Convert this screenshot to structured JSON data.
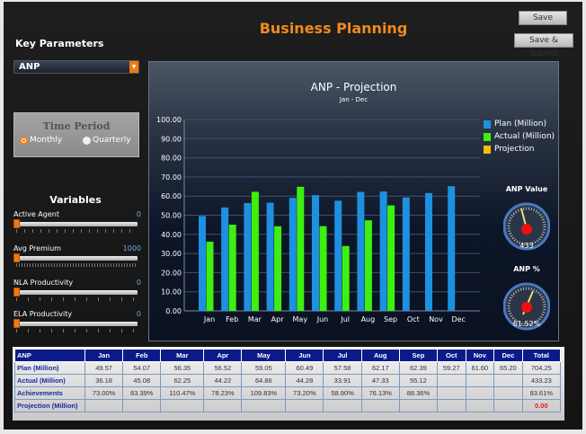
{
  "header": {
    "title": "Business Planning",
    "save_label": "Save",
    "save_submit_label": "Save & Submit"
  },
  "sidebar": {
    "key_parameters_label": "Key Parameters",
    "parameter_select": "ANP",
    "time_period": {
      "title": "Time Period",
      "options": [
        "Monthly",
        "Quarterly"
      ],
      "selected": "Monthly"
    },
    "variables_title": "Variables",
    "variables": [
      {
        "label": "Active Agent",
        "value": "0"
      },
      {
        "label": "Avg Premium",
        "value": "1000"
      },
      {
        "label": "NLA Productivity",
        "value": "0"
      },
      {
        "label": "ELA Productivity",
        "value": "0"
      }
    ]
  },
  "colors": {
    "plan": "#1e90e0",
    "actual": "#3ef010",
    "projection": "#f0c000",
    "accent": "#f07a10"
  },
  "chart_data": {
    "type": "bar",
    "title": "ANP - Projection",
    "subtitle": "Jan - Dec",
    "categories": [
      "Jan",
      "Feb",
      "Mar",
      "Apr",
      "May",
      "Jun",
      "Jul",
      "Aug",
      "Sep",
      "Oct",
      "Nov",
      "Dec"
    ],
    "series": [
      {
        "name": "Plan (Million)",
        "values": [
          49.57,
          54.07,
          56.35,
          56.52,
          59.05,
          60.49,
          57.58,
          62.17,
          62.39,
          59.27,
          61.6,
          65.2
        ]
      },
      {
        "name": "Actual (Million)",
        "values": [
          36.18,
          45.08,
          62.25,
          44.22,
          64.86,
          44.28,
          33.91,
          47.33,
          55.12,
          null,
          null,
          null
        ]
      },
      {
        "name": "Projection",
        "values": [
          null,
          null,
          null,
          null,
          null,
          null,
          null,
          null,
          null,
          null,
          null,
          null
        ]
      }
    ],
    "yticks": [
      "0.00",
      "10.00",
      "20.00",
      "30.00",
      "40.00",
      "50.00",
      "60.00",
      "70.00",
      "80.00",
      "90.00",
      "100.00"
    ],
    "ylim": [
      0,
      100
    ],
    "legend": "right"
  },
  "gauges": [
    {
      "label": "ANP Value",
      "value": "433"
    },
    {
      "label": "ANP %",
      "value": "61.52%"
    }
  ],
  "table": {
    "headers": [
      "ANP",
      "Jan",
      "Feb",
      "Mar",
      "Apr",
      "May",
      "Jun",
      "Jul",
      "Aug",
      "Sep",
      "Oct",
      "Nov",
      "Dec",
      "Total"
    ],
    "rows": [
      {
        "label": "Plan (Million)",
        "cells": [
          "49.57",
          "54.07",
          "56.35",
          "56.52",
          "59.05",
          "60.49",
          "57.58",
          "62.17",
          "62.39",
          "59.27",
          "61.60",
          "65.20",
          "704.25"
        ]
      },
      {
        "label": "Actual (Million)",
        "cells": [
          "36.18",
          "45.08",
          "62.25",
          "44.22",
          "64.86",
          "44.28",
          "33.91",
          "47.33",
          "55.12",
          "",
          "",
          "",
          "433.23"
        ]
      },
      {
        "label": "Achievements",
        "cells": [
          "73.00%",
          "83.39%",
          "110.47%",
          "78.23%",
          "109.83%",
          "73.20%",
          "58.90%",
          "76.13%",
          "88.36%",
          "",
          "",
          "",
          "83.61%"
        ]
      },
      {
        "label": "Projection (Million)",
        "cells": [
          "",
          "",
          "",
          "",
          "",
          "",
          "",
          "",
          "",
          "",
          "",
          "",
          "0.00"
        ]
      }
    ]
  }
}
